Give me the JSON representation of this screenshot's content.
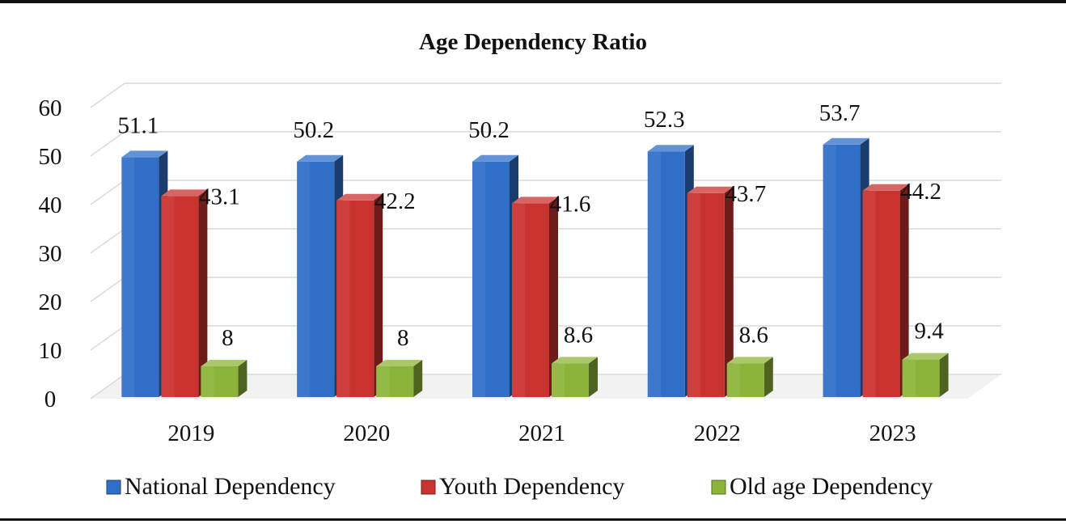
{
  "chart_data": {
    "type": "bar",
    "title": "Age Dependency Ratio",
    "xlabel": "",
    "ylabel": "",
    "categories": [
      "2019",
      "2020",
      "2021",
      "2022",
      "2023"
    ],
    "series": [
      {
        "name": "National Dependency",
        "values": [
          51.1,
          50.2,
          50.2,
          52.3,
          53.7
        ],
        "color": "#2F6FC8"
      },
      {
        "name": "Youth Dependency",
        "values": [
          43.1,
          42.2,
          41.6,
          43.7,
          44.2
        ],
        "color": "#C8322F"
      },
      {
        "name": "Old age Dependency",
        "values": [
          8,
          8,
          8.6,
          8.6,
          9.4
        ],
        "color": "#8DB43A"
      }
    ],
    "data_labels": [
      [
        "51.1",
        "50.2",
        "50.2",
        "52.3",
        "53.7"
      ],
      [
        "43.1",
        "42.2",
        "41.6",
        "43.7",
        "44.2"
      ],
      [
        "8",
        "8",
        "8.6",
        "8.6",
        "9.4"
      ]
    ],
    "yticks": [
      "0",
      "10",
      "20",
      "30",
      "40",
      "50",
      "60"
    ],
    "ylim": [
      0,
      60
    ],
    "grid": true,
    "style": "3d",
    "legend_position": "bottom"
  }
}
